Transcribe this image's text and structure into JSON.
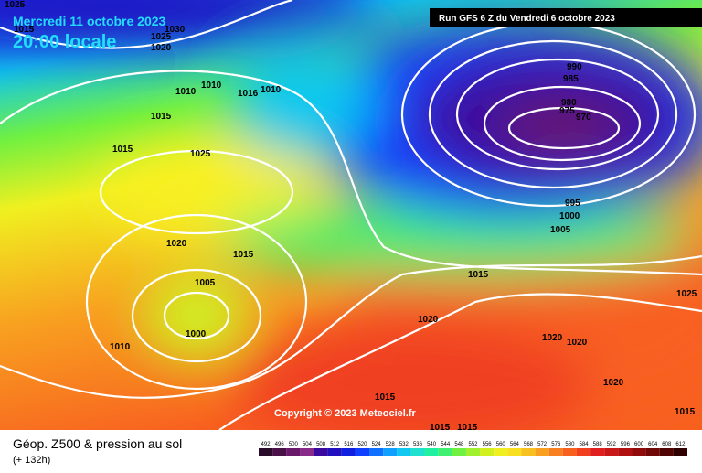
{
  "header": {
    "date": "Mercredi 11 octobre 2023",
    "time": "20:00 locale",
    "run": "Run GFS 6 Z du Vendredi 6 octobre 2023"
  },
  "copyright": "Copyright © 2023 Meteociel.fr",
  "legend": {
    "title": "Géop. Z500 & pression au sol",
    "lead": "(+ 132h)",
    "scale": [
      492,
      496,
      500,
      504,
      508,
      512,
      516,
      520,
      524,
      528,
      532,
      536,
      540,
      544,
      548,
      552,
      556,
      560,
      564,
      568,
      572,
      576,
      580,
      584,
      588,
      592,
      596,
      600,
      604,
      608,
      612
    ],
    "colors": [
      "#2a0c2a",
      "#4a1048",
      "#6a1a6a",
      "#8a2a8a",
      "#3a0aa0",
      "#2010c0",
      "#1020e0",
      "#1040ff",
      "#1070ff",
      "#10a0ff",
      "#10c8f0",
      "#20e0d0",
      "#20f0a0",
      "#40f070",
      "#70f040",
      "#a0f030",
      "#d0f020",
      "#f0f020",
      "#f8e020",
      "#f8c020",
      "#f8a020",
      "#f88020",
      "#f86020",
      "#f04020",
      "#e02020",
      "#c81818",
      "#b01010",
      "#900c0c",
      "#700808",
      "#500404",
      "#300000"
    ]
  },
  "isobars": [
    "1025",
    "1015",
    "1030",
    "1025",
    "1020",
    "1010",
    "1010",
    "1016",
    "1010",
    "1015",
    "1015",
    "1025",
    "1020",
    "1015",
    "1005",
    "1000",
    "1010",
    "990",
    "985",
    "980",
    "975",
    "970",
    "995",
    "1000",
    "1005",
    "1015",
    "1020",
    "1020",
    "1020",
    "1025",
    "1020",
    "1015",
    "1015",
    "1015",
    "1015"
  ]
}
